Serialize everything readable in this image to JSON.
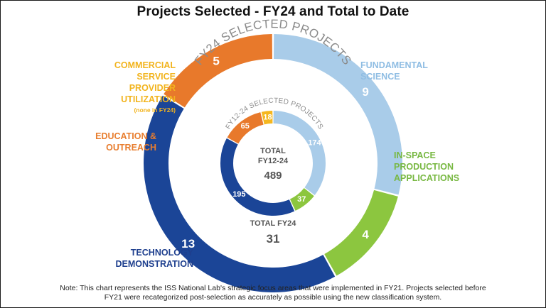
{
  "title": "Projects Selected - FY24 and Total to Date",
  "chart_data": [
    {
      "type": "pie",
      "name": "FY24 SELECTED PROJECTS",
      "center_label": "TOTAL FY24",
      "total": 31,
      "segments": [
        {
          "category": "FUNDAMENTAL SCIENCE",
          "value": 9,
          "color": "#a9cce9"
        },
        {
          "category": "IN-SPACE PRODUCTION APPLICATIONS",
          "value": 4,
          "color": "#8cc63f"
        },
        {
          "category": "TECHNOLOGY DEMONSTRATION",
          "value": 13,
          "color": "#1b4597"
        },
        {
          "category": "EDUCATION & OUTREACH",
          "value": 5,
          "color": "#e8792b"
        },
        {
          "category": "COMMERCIAL SERVICE PROVIDER UTILIZATION",
          "value": 0,
          "color": "#f5b71f"
        }
      ]
    },
    {
      "type": "pie",
      "name": "FY12-24 SELECTED PROJECTS",
      "center_label": "TOTAL FY12-24",
      "total": 489,
      "segments": [
        {
          "category": "FUNDAMENTAL SCIENCE",
          "value": 174,
          "color": "#a9cce9"
        },
        {
          "category": "IN-SPACE PRODUCTION APPLICATIONS",
          "value": 37,
          "color": "#8cc63f"
        },
        {
          "category": "TECHNOLOGY DEMONSTRATION",
          "value": 195,
          "color": "#1b4597"
        },
        {
          "category": "EDUCATION & OUTREACH",
          "value": 65,
          "color": "#e8792b"
        },
        {
          "category": "COMMERCIAL SERVICE PROVIDER UTILIZATION",
          "value": 18,
          "color": "#f5b71f"
        }
      ]
    }
  ],
  "labels": {
    "cspu_1": "COMMERCIAL",
    "cspu_2": "SERVICE PROVIDER",
    "cspu_3": "UTILIZATION",
    "cspu_note": "(none in FY24)",
    "edu_1": "EDUCATION &",
    "edu_2": "OUTREACH",
    "fund_1": "FUNDAMENTAL",
    "fund_2": "SCIENCE",
    "isp_1": "IN-SPACE",
    "isp_2": "PRODUCTION",
    "isp_3": "APPLICATIONS",
    "tech_1": "TECHNOLOGY",
    "tech_2": "DEMONSTRATION"
  },
  "center": {
    "inner_label_1": "TOTAL",
    "inner_label_2": "FY12-24",
    "inner_value": "489",
    "outer_label": "TOTAL FY24",
    "outer_value": "31"
  },
  "note": "Note: This chart represents the ISS National Lab's strategic focus areas that were implemented in FY21. Projects selected before FY21 were recategorized post-selection as accurately as possible using the new classification system."
}
